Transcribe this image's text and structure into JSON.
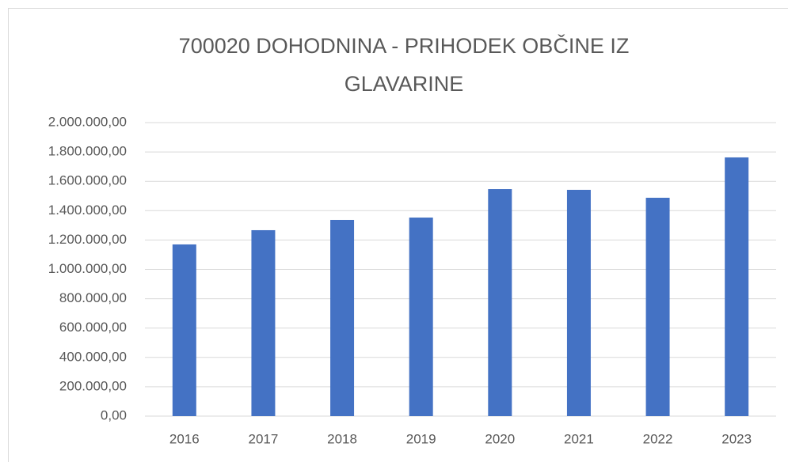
{
  "chart_data": {
    "type": "bar",
    "title": "700020 DOHODNINA - PRIHODEK OBČINE IZ GLAVARINE",
    "categories": [
      "2016",
      "2017",
      "2018",
      "2019",
      "2020",
      "2021",
      "2022",
      "2023"
    ],
    "values": [
      1170000,
      1267000,
      1337000,
      1353000,
      1547000,
      1542000,
      1488000,
      1763000
    ],
    "color": "#4472c4",
    "ylim": [
      0,
      2000000
    ],
    "yticks": [
      {
        "value": 0,
        "label": "0,00"
      },
      {
        "value": 200000,
        "label": "200.000,00"
      },
      {
        "value": 400000,
        "label": "400.000,00"
      },
      {
        "value": 600000,
        "label": "600.000,00"
      },
      {
        "value": 800000,
        "label": "800.000,00"
      },
      {
        "value": 1000000,
        "label": "1.000.000,00"
      },
      {
        "value": 1200000,
        "label": "1.200.000,00"
      },
      {
        "value": 1400000,
        "label": "1.400.000,00"
      },
      {
        "value": 1600000,
        "label": "1.600.000,00"
      },
      {
        "value": 1800000,
        "label": "1.800.000,00"
      },
      {
        "value": 2000000,
        "label": "2.000.000,00"
      }
    ],
    "grid": true
  }
}
